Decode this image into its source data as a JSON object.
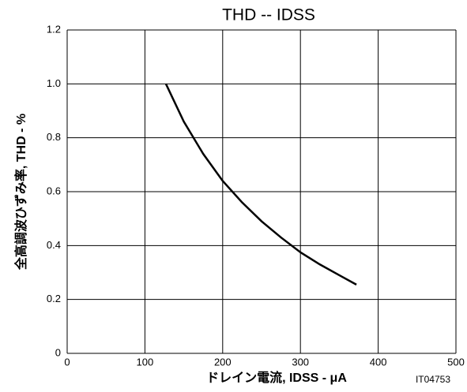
{
  "chart_data": {
    "type": "line",
    "title": "THD -- IDSS",
    "x_label": "ドレイン電流, IDSS - μA",
    "y_label": "全高調波ひずみ率, THD - %",
    "code": "IT04753",
    "x": [
      127,
      150,
      175,
      200,
      225,
      250,
      275,
      300,
      325,
      350,
      372
    ],
    "series": [
      {
        "color": "#000000",
        "values": [
          1.0,
          0.86,
          0.74,
          0.64,
          0.56,
          0.49,
          0.43,
          0.375,
          0.33,
          0.29,
          0.255
        ]
      }
    ],
    "xlim": [
      0,
      500
    ],
    "xticks": [
      0,
      100,
      200,
      300,
      400,
      500
    ],
    "ylim": [
      0,
      1.2
    ],
    "yticks": [
      0,
      0.2,
      0.4,
      0.6,
      {
        "value": 0.8,
        "label": "0.8"
      },
      {
        "value": 1.0,
        "label": "1.0"
      },
      1.2
    ],
    "grid": true
  }
}
